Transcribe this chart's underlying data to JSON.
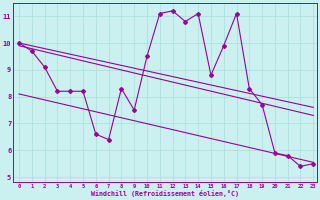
{
  "xlabel": "Windchill (Refroidissement éolien,°C)",
  "bg_color": "#caf0f0",
  "line_color": "#990099",
  "grid_color": "#aadddd",
  "x_data": [
    0,
    1,
    2,
    3,
    4,
    5,
    6,
    7,
    8,
    9,
    10,
    11,
    12,
    13,
    14,
    15,
    16,
    17,
    18,
    19,
    20,
    21,
    22,
    23
  ],
  "y_data": [
    10.0,
    9.7,
    9.1,
    8.2,
    8.2,
    8.2,
    6.6,
    6.4,
    8.3,
    7.5,
    9.5,
    11.1,
    11.2,
    10.8,
    11.1,
    8.8,
    9.9,
    11.1,
    8.3,
    7.7,
    5.9,
    5.8,
    5.4,
    5.5
  ],
  "ylim": [
    4.8,
    11.5
  ],
  "xlim": [
    -0.5,
    23.3
  ],
  "yticks": [
    5,
    6,
    7,
    8,
    9,
    10,
    11
  ],
  "xticks": [
    0,
    1,
    2,
    3,
    4,
    5,
    6,
    7,
    8,
    9,
    10,
    11,
    12,
    13,
    14,
    15,
    16,
    17,
    18,
    19,
    20,
    21,
    22,
    23
  ],
  "trend_lines": [
    [
      0,
      10.0,
      23,
      7.6
    ],
    [
      0,
      9.9,
      23,
      7.3
    ],
    [
      0,
      8.1,
      23,
      5.55
    ]
  ]
}
